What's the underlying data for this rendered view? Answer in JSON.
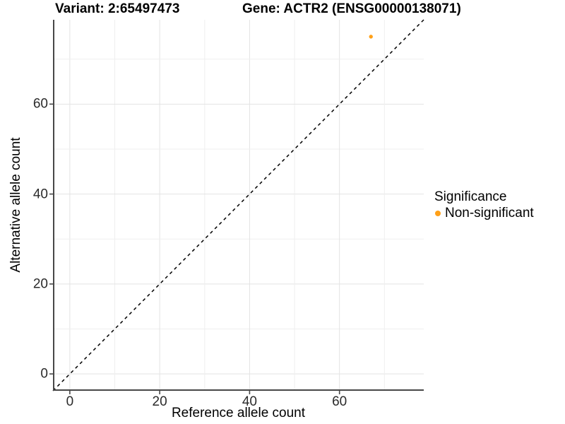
{
  "chart_data": {
    "type": "scatter",
    "titles": {
      "left": "Variant: 2:65497473",
      "right": "Gene: ACTR2 (ENSG00000138071)"
    },
    "xlabel": "Reference allele count",
    "ylabel": "Alternative allele count",
    "xlim": [
      -3.75,
      78.75
    ],
    "ylim": [
      -3.75,
      78.75
    ],
    "xticks": [
      0,
      20,
      40,
      60
    ],
    "yticks": [
      0,
      20,
      40,
      60
    ],
    "minor_grid_step": 10,
    "major_grid_step": 20,
    "grid": "on",
    "panel_background": "#ffffff",
    "major_grid_color": "#e3e3e3",
    "minor_grid_color": "#efefef",
    "axis_line_color": "#474747",
    "identity_line": {
      "style": "dashed",
      "color": "#000000",
      "from": [
        -3.75,
        -3.75
      ],
      "to": [
        78.75,
        78.75
      ]
    },
    "series": [
      {
        "name": "Non-significant",
        "color": "#ffa018",
        "point_radius": 2.7,
        "points": [
          {
            "x": 67,
            "y": 75
          }
        ]
      }
    ],
    "legend": {
      "title": "Significance",
      "position": "right",
      "items": [
        {
          "label": "Non-significant",
          "color": "#ffa018"
        }
      ]
    }
  }
}
